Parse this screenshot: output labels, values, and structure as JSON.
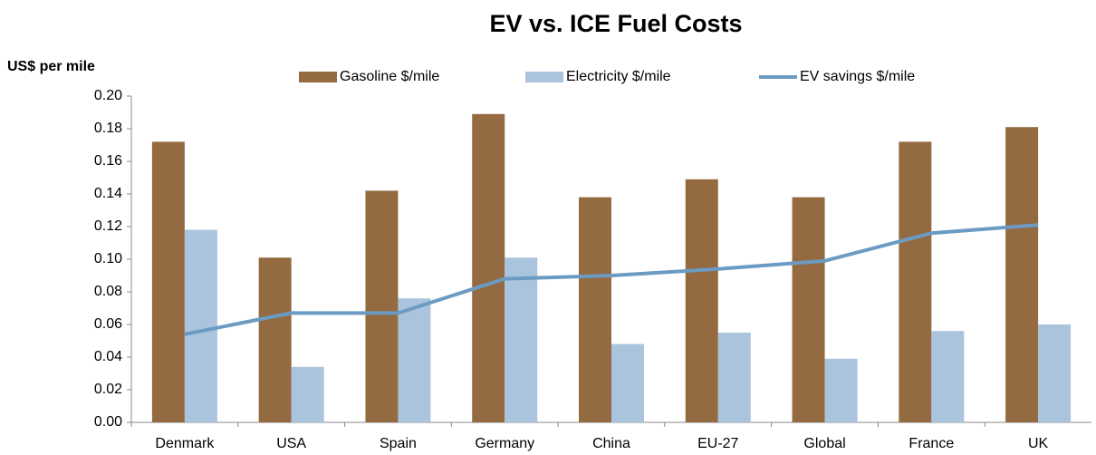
{
  "chart_data": {
    "type": "bar",
    "title": "EV vs. ICE Fuel Costs",
    "y_label": "US$ per mile",
    "categories": [
      "Denmark",
      "USA",
      "Spain",
      "Germany",
      "China",
      "EU-27",
      "Global",
      "France",
      "UK"
    ],
    "series": [
      {
        "name": "Gasoline $/mile",
        "color": "#946a41",
        "values": [
          0.172,
          0.101,
          0.142,
          0.189,
          0.138,
          0.149,
          0.138,
          0.172,
          0.181
        ]
      },
      {
        "name": "Electricity $/mile",
        "color": "#a9c4dc",
        "values": [
          0.118,
          0.034,
          0.076,
          0.101,
          0.048,
          0.055,
          0.039,
          0.056,
          0.06
        ]
      },
      {
        "name": "EV savings $/mile",
        "color": "#6b9bc3",
        "type": "line",
        "values": [
          0.054,
          0.067,
          0.067,
          0.088,
          0.09,
          0.094,
          0.099,
          0.116,
          0.121
        ]
      }
    ],
    "ylim": [
      0,
      0.2
    ],
    "yticks": [
      {
        "value": 0,
        "label": "0.00"
      },
      0.02,
      0.04,
      0.06,
      0.08,
      {
        "value": 0.1,
        "label": "0.10"
      },
      0.12,
      0.14,
      0.16,
      0.18,
      {
        "value": 0.2,
        "label": "0.20"
      }
    ],
    "grid": false,
    "legend": "top"
  }
}
